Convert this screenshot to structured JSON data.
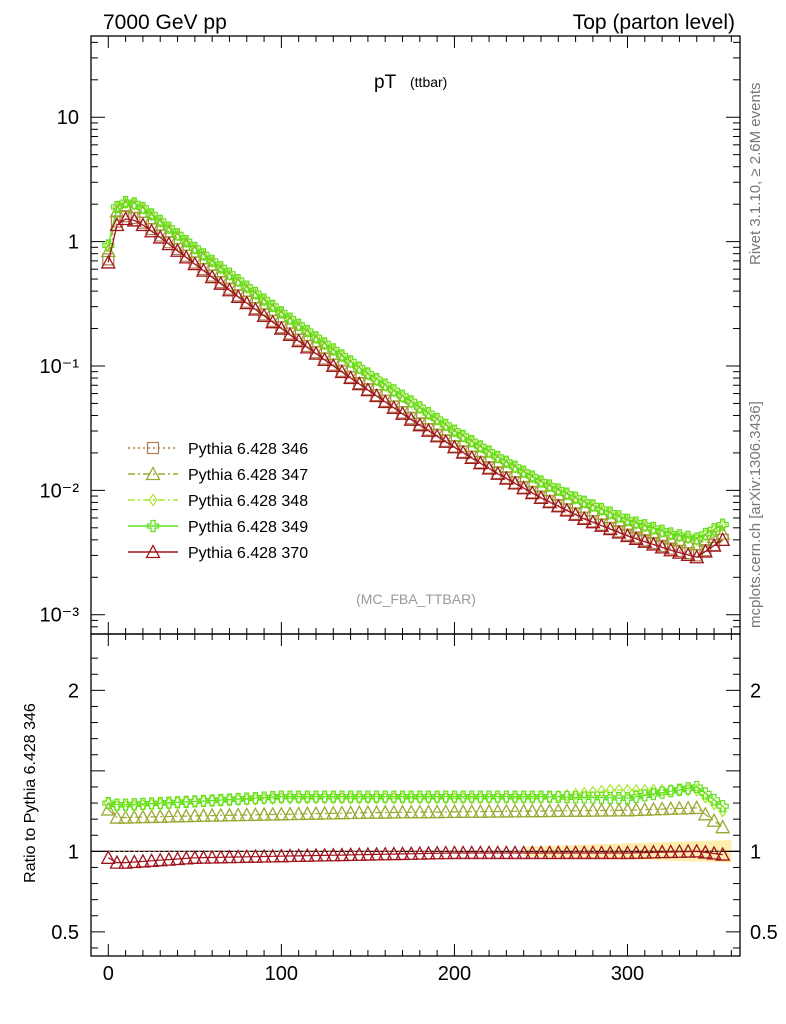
{
  "header": {
    "energy": "7000 GeV pp",
    "process": "Top (parton level)"
  },
  "side_labels": {
    "rivet": "Rivet 3.1.10, ≥ 2.6M events",
    "mcplots": "mcplots.cern.ch [arXiv:1306.3436]"
  },
  "chart_data": [
    {
      "type": "line",
      "panel": "main",
      "title": "pT",
      "title_sub": "(ttbar)",
      "annotation": "(MC_FBA_TTBAR)",
      "yscale": "log",
      "xlim": [
        -10,
        365
      ],
      "ylim": [
        0.0007,
        45
      ],
      "yticks": [
        {
          "value": 10,
          "label": "10"
        },
        {
          "value": 1,
          "label": "1"
        },
        {
          "value": 0.1,
          "label": "10⁻¹"
        },
        {
          "value": 0.01,
          "label": "10⁻²"
        },
        {
          "value": 0.001,
          "label": "10⁻³"
        }
      ],
      "legend_position": "bottom-left",
      "series": [
        {
          "name": "Pythia 6.428 346",
          "color": "#b07f4f",
          "marker": "square",
          "line": "dotted",
          "points": [
            [
              0,
              0.72
            ],
            [
              5,
              1.45
            ],
            [
              10,
              1.6
            ],
            [
              15,
              1.55
            ],
            [
              20,
              1.42
            ],
            [
              30,
              1.12
            ],
            [
              50,
              0.68
            ],
            [
              75,
              0.37
            ],
            [
              100,
              0.205
            ],
            [
              125,
              0.115
            ],
            [
              150,
              0.065
            ],
            [
              175,
              0.038
            ],
            [
              200,
              0.0225
            ],
            [
              225,
              0.0138
            ],
            [
              250,
              0.0088
            ],
            [
              275,
              0.006
            ],
            [
              300,
              0.0044
            ],
            [
              325,
              0.0034
            ],
            [
              340,
              0.003
            ],
            [
              355,
              0.004
            ]
          ]
        },
        {
          "name": "Pythia 6.428 347",
          "color": "#9aa832",
          "marker": "triangle",
          "line": "dashdot",
          "points": [
            [
              0,
              0.84
            ],
            [
              5,
              1.75
            ],
            [
              10,
              1.93
            ],
            [
              15,
              1.88
            ],
            [
              20,
              1.73
            ],
            [
              30,
              1.36
            ],
            [
              50,
              0.83
            ],
            [
              75,
              0.45
            ],
            [
              100,
              0.25
            ],
            [
              125,
              0.14
            ],
            [
              150,
              0.079
            ],
            [
              175,
              0.047
            ],
            [
              200,
              0.0278
            ],
            [
              225,
              0.0171
            ],
            [
              250,
              0.0109
            ],
            [
              275,
              0.0074
            ],
            [
              300,
              0.0053
            ],
            [
              325,
              0.0041
            ],
            [
              340,
              0.0037
            ],
            [
              355,
              0.0045
            ]
          ]
        },
        {
          "name": "Pythia 6.428 348",
          "color": "#a6e82a",
          "marker": "diamond",
          "line": "dashdot",
          "points": [
            [
              0,
              0.92
            ],
            [
              5,
              1.88
            ],
            [
              10,
              2.06
            ],
            [
              15,
              2.01
            ],
            [
              20,
              1.85
            ],
            [
              30,
              1.45
            ],
            [
              50,
              0.88
            ],
            [
              75,
              0.48
            ],
            [
              100,
              0.268
            ],
            [
              125,
              0.15
            ],
            [
              150,
              0.086
            ],
            [
              175,
              0.051
            ],
            [
              200,
              0.03
            ],
            [
              225,
              0.0185
            ],
            [
              250,
              0.0117
            ],
            [
              275,
              0.008
            ],
            [
              300,
              0.0057
            ],
            [
              325,
              0.0044
            ],
            [
              340,
              0.004
            ],
            [
              355,
              0.0052
            ]
          ]
        },
        {
          "name": "Pythia 6.428 349",
          "color": "#5ee01b",
          "marker": "cross",
          "line": "solid",
          "points": [
            [
              0,
              0.93
            ],
            [
              5,
              1.9
            ],
            [
              10,
              2.08
            ],
            [
              15,
              2.03
            ],
            [
              20,
              1.87
            ],
            [
              30,
              1.47
            ],
            [
              50,
              0.89
            ],
            [
              75,
              0.49
            ],
            [
              100,
              0.27
            ],
            [
              125,
              0.152
            ],
            [
              150,
              0.087
            ],
            [
              175,
              0.052
            ],
            [
              200,
              0.0302
            ],
            [
              225,
              0.0186
            ],
            [
              250,
              0.0118
            ],
            [
              275,
              0.0081
            ],
            [
              300,
              0.0058
            ],
            [
              325,
              0.0045
            ],
            [
              340,
              0.0041
            ],
            [
              355,
              0.0053
            ]
          ]
        },
        {
          "name": "Pythia 6.428 370",
          "color": "#a0141e",
          "marker": "triangle",
          "line": "solid",
          "points": [
            [
              0,
              0.68
            ],
            [
              5,
              1.36
            ],
            [
              10,
              1.52
            ],
            [
              15,
              1.48
            ],
            [
              20,
              1.36
            ],
            [
              30,
              1.08
            ],
            [
              50,
              0.66
            ],
            [
              75,
              0.36
            ],
            [
              100,
              0.2
            ],
            [
              125,
              0.112
            ],
            [
              150,
              0.064
            ],
            [
              175,
              0.037
            ],
            [
              200,
              0.0222
            ],
            [
              225,
              0.0136
            ],
            [
              250,
              0.0087
            ],
            [
              275,
              0.0059
            ],
            [
              300,
              0.0043
            ],
            [
              325,
              0.0033
            ],
            [
              340,
              0.0029
            ],
            [
              355,
              0.004
            ]
          ]
        }
      ]
    },
    {
      "type": "line",
      "panel": "ratio",
      "ylabel": "Ratio to Pythia 6.428 346",
      "xlim": [
        -10,
        365
      ],
      "ylim": [
        0.35,
        2.35
      ],
      "xticks": [
        0,
        100,
        200,
        300
      ],
      "yticks": [
        {
          "value": 2,
          "label": "2"
        },
        {
          "value": 1,
          "label": "1"
        },
        {
          "value": 0.5,
          "label": "0.5"
        }
      ],
      "reference_line": 1,
      "series": [
        {
          "name": "Pythia 6.428 346",
          "values_at": "all",
          "ratio": [
            [
              0,
              1.0
            ],
            [
              360,
              1.0
            ]
          ]
        },
        {
          "name": "Pythia 6.428 347",
          "ratio": [
            [
              0,
              1.26
            ],
            [
              5,
              1.21
            ],
            [
              10,
              1.21
            ],
            [
              50,
              1.22
            ],
            [
              100,
              1.23
            ],
            [
              150,
              1.24
            ],
            [
              200,
              1.245
            ],
            [
              250,
              1.25
            ],
            [
              300,
              1.255
            ],
            [
              340,
              1.27
            ],
            [
              355,
              1.15
            ]
          ]
        },
        {
          "name": "Pythia 6.428 348",
          "ratio": [
            [
              0,
              1.3
            ],
            [
              5,
              1.28
            ],
            [
              10,
              1.28
            ],
            [
              50,
              1.31
            ],
            [
              100,
              1.33
            ],
            [
              150,
              1.33
            ],
            [
              200,
              1.33
            ],
            [
              250,
              1.33
            ],
            [
              290,
              1.38
            ],
            [
              340,
              1.38
            ],
            [
              355,
              1.25
            ]
          ]
        },
        {
          "name": "Pythia 6.428 349",
          "ratio": [
            [
              0,
              1.3
            ],
            [
              5,
              1.29
            ],
            [
              10,
              1.29
            ],
            [
              50,
              1.31
            ],
            [
              100,
              1.34
            ],
            [
              150,
              1.34
            ],
            [
              200,
              1.34
            ],
            [
              250,
              1.34
            ],
            [
              300,
              1.33
            ],
            [
              340,
              1.4
            ],
            [
              355,
              1.28
            ]
          ]
        },
        {
          "name": "Pythia 6.428 370",
          "ratio": [
            [
              0,
              0.96
            ],
            [
              5,
              0.93
            ],
            [
              10,
              0.93
            ],
            [
              50,
              0.96
            ],
            [
              100,
              0.97
            ],
            [
              150,
              0.98
            ],
            [
              200,
              0.99
            ],
            [
              250,
              0.99
            ],
            [
              300,
              0.99
            ],
            [
              340,
              1.0
            ],
            [
              355,
              0.98
            ]
          ]
        }
      ]
    }
  ]
}
